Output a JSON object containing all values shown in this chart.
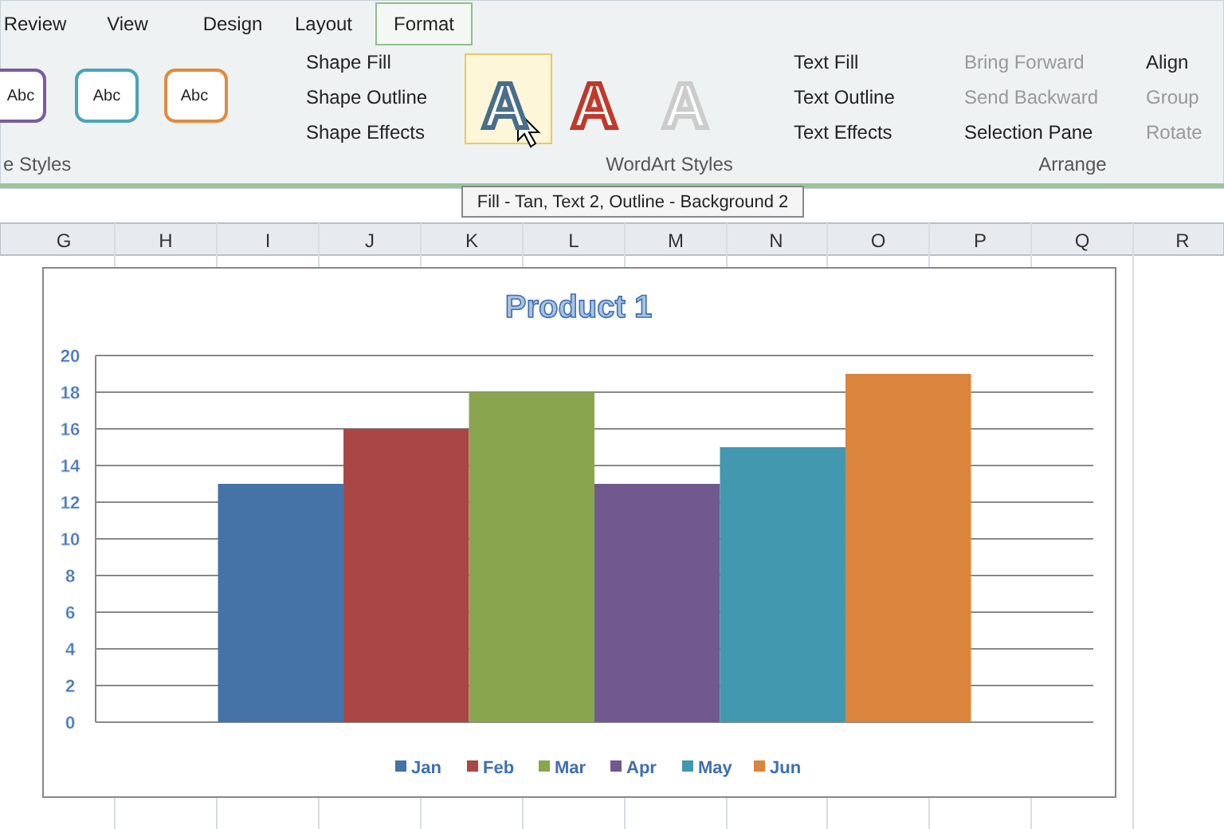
{
  "chart_data": {
    "type": "bar",
    "title": "Product 1",
    "categories": [
      null
    ],
    "series": [
      {
        "name": "Jan",
        "color": "#4572a7",
        "values": [
          13
        ]
      },
      {
        "name": "Feb",
        "color": "#aa4643",
        "values": [
          16
        ]
      },
      {
        "name": "Mar",
        "color": "#89a54e",
        "values": [
          18
        ]
      },
      {
        "name": "Apr",
        "color": "#71588f",
        "values": [
          13
        ]
      },
      {
        "name": "May",
        "color": "#4198af",
        "values": [
          15
        ]
      },
      {
        "name": "Jun",
        "color": "#db843d",
        "values": [
          19
        ]
      }
    ],
    "ylim": [
      0,
      20
    ],
    "yticks": [
      0,
      2,
      4,
      6,
      8,
      10,
      12,
      14,
      16,
      18,
      20
    ],
    "grid": "y",
    "legend": "bottom",
    "annotations": [
      "Review",
      "View",
      "Design",
      "Layout",
      "Format",
      "Abc",
      "Abc",
      "Abc",
      "Shape Fill",
      "Shape Outline",
      "Shape Effects",
      "e Styles",
      "A",
      "A",
      "A",
      "Text Fill",
      "Text Outline",
      "Text Effects",
      "WordArt Styles",
      "Bring Forward",
      "Send Backward",
      "Selection Pane",
      "Align",
      "Group",
      "Rotate",
      "Arrange",
      "Fill - Tan, Text 2, Outline - Background 2",
      "G",
      "H",
      "I",
      "J",
      "K",
      "L",
      "M",
      "N",
      "O",
      "P",
      "Q",
      "R"
    ]
  }
}
